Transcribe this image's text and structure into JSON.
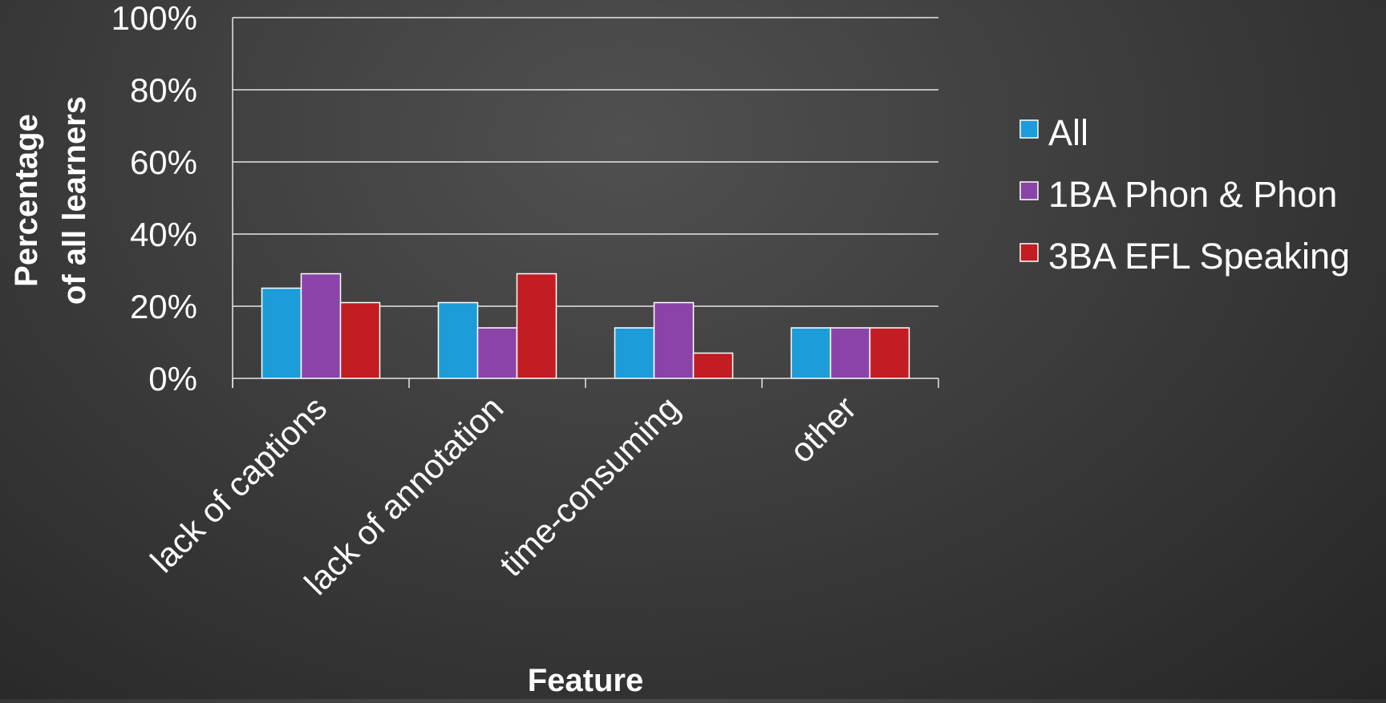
{
  "chart_data": {
    "type": "bar",
    "title": "",
    "xlabel": "Feature",
    "ylabel_lines": [
      "Percentage",
      "of all learners"
    ],
    "categories": [
      "lack of captions",
      "lack of annotation",
      "time-consuming",
      "other"
    ],
    "series": [
      {
        "name": "All",
        "values": [
          25,
          21,
          14,
          14
        ],
        "color": "#1c9cd8"
      },
      {
        "name": "1BA Phon & Phon",
        "values": [
          29,
          14,
          21,
          14
        ],
        "color": "#8a44a8"
      },
      {
        "name": "3BA EFL Speaking",
        "values": [
          21,
          29,
          7,
          14
        ],
        "color": "#c11d22"
      }
    ],
    "ylim": [
      0,
      100
    ],
    "yticks": [
      0,
      20,
      40,
      60,
      80,
      100
    ],
    "ytick_labels": [
      "0%",
      "20%",
      "40%",
      "60%",
      "80%",
      "100%"
    ],
    "grid": true,
    "legend_position": "right"
  }
}
